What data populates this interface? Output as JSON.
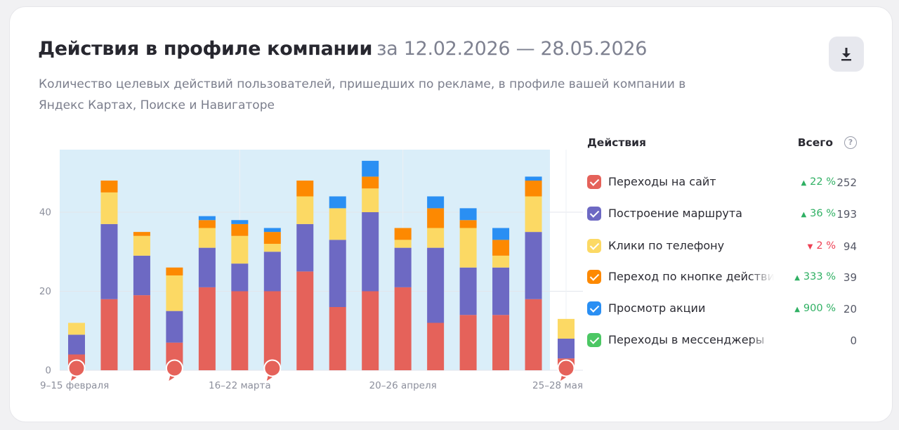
{
  "header": {
    "title": "Действия в профиле компании",
    "date_range": "за 12.02.2026 — 28.05.2026",
    "subtitle": "Количество целевых действий пользователей, пришедших по рекламе, в профиле вашей компании в Яндекс Картах, Поиске и Навигаторе",
    "download_icon": "download-icon"
  },
  "legend": {
    "column_title": "Действия",
    "column_total": "Всего",
    "help_icon": "?",
    "items": [
      {
        "label": "Переходы на сайт",
        "color": "#e5625a",
        "change": "22 %",
        "trend": "up",
        "total": "252"
      },
      {
        "label": "Построение маршрута",
        "color": "#6d69c3",
        "change": "36 %",
        "trend": "up",
        "total": "193"
      },
      {
        "label": "Клики по телефону",
        "color": "#fcd964",
        "change": "2 %",
        "trend": "down",
        "total": "94"
      },
      {
        "label": "Переход по кнопке действия",
        "color": "#fd8901",
        "change": "333 %",
        "trend": "up",
        "total": "39"
      },
      {
        "label": "Просмотр акции",
        "color": "#2a8ff3",
        "change": "900 %",
        "trend": "up",
        "total": "20"
      },
      {
        "label": "Переходы в мессенджеры",
        "color": "#4cc764",
        "change": "",
        "trend": "",
        "total": "0"
      }
    ]
  },
  "chart_data": {
    "type": "bar",
    "stacked": true,
    "ylim": [
      0,
      56
    ],
    "y_ticks": [
      0,
      20,
      40
    ],
    "x_tick_labels": [
      {
        "index": 0,
        "label": "9–15 февраля"
      },
      {
        "index": 5,
        "label": "16–22 марта"
      },
      {
        "index": 10,
        "label": "20–26 апреля"
      },
      {
        "index": 15,
        "label": "25–28 мая"
      }
    ],
    "annotation_marker_indices": [
      0,
      3,
      6,
      15
    ],
    "grid": true,
    "highlight_background": "#daeef9",
    "series": [
      {
        "name": "Переходы на сайт",
        "color": "#e5625a",
        "values": [
          4,
          18,
          19,
          7,
          21,
          20,
          20,
          25,
          16,
          20,
          21,
          12,
          14,
          14,
          18,
          3
        ]
      },
      {
        "name": "Построение маршрута",
        "color": "#6d69c3",
        "values": [
          5,
          19,
          10,
          8,
          10,
          7,
          10,
          12,
          17,
          20,
          10,
          19,
          12,
          12,
          17,
          5
        ]
      },
      {
        "name": "Клики по телефону",
        "color": "#fcd964",
        "values": [
          3,
          8,
          5,
          9,
          5,
          7,
          2,
          7,
          8,
          6,
          2,
          5,
          10,
          3,
          9,
          5
        ]
      },
      {
        "name": "Переход по кнопке действия",
        "color": "#fd8901",
        "values": [
          0,
          3,
          1,
          2,
          2,
          3,
          3,
          4,
          0,
          3,
          3,
          5,
          2,
          4,
          4,
          0
        ]
      },
      {
        "name": "Просмотр акции",
        "color": "#2a8ff3",
        "values": [
          0,
          0,
          0,
          0,
          1,
          1,
          1,
          0,
          3,
          4,
          0,
          3,
          3,
          3,
          1,
          0
        ]
      },
      {
        "name": "Переходы в мессенджеры",
        "color": "#4cc764",
        "values": [
          0,
          0,
          0,
          0,
          0,
          0,
          0,
          0,
          0,
          0,
          0,
          0,
          0,
          0,
          0,
          0
        ]
      }
    ]
  }
}
